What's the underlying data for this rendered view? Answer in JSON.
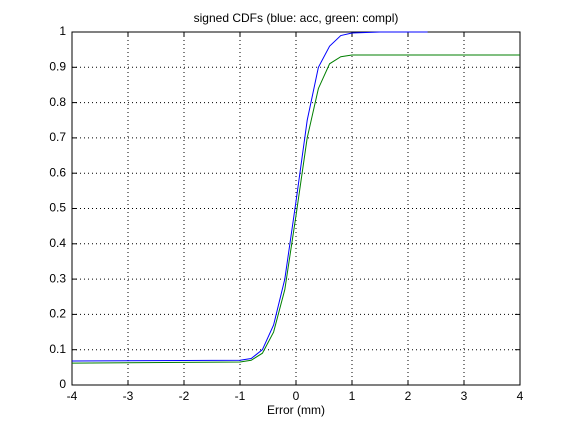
{
  "chart_data": {
    "type": "line",
    "title": "signed CDFs (blue: acc, green: compl)",
    "x_label": "Error (mm)",
    "x": [
      -4,
      -1,
      -0.8,
      -0.6,
      -0.4,
      -0.2,
      0,
      0.2,
      0.4,
      0.6,
      0.8,
      1,
      1.5,
      2.35,
      4
    ],
    "series": [
      {
        "name": "acc",
        "color": "#0000ff",
        "values": [
          0.068,
          0.07,
          0.075,
          0.1,
          0.17,
          0.3,
          0.52,
          0.75,
          0.9,
          0.96,
          0.99,
          0.997,
          1.0,
          1.0,
          null
        ]
      },
      {
        "name": "compl",
        "color": "#007f00",
        "values": [
          0.062,
          0.065,
          0.07,
          0.09,
          0.15,
          0.27,
          0.48,
          0.7,
          0.84,
          0.91,
          0.93,
          0.935,
          0.935,
          0.935,
          0.935
        ]
      }
    ],
    "xlim": [
      -4,
      4
    ],
    "xticks": [
      -4,
      -3,
      -2,
      -1,
      0,
      1,
      2,
      3,
      4
    ],
    "ylim": [
      0,
      1
    ],
    "yticks": [
      0,
      0.1,
      0.2,
      0.3,
      0.4,
      0.5,
      0.6,
      0.7,
      0.8,
      0.9,
      1
    ],
    "grid": true
  }
}
